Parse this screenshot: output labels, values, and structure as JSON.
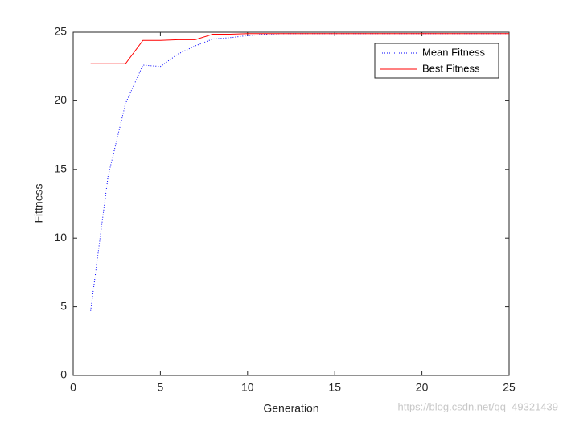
{
  "chart_data": {
    "type": "line",
    "xlabel": "Generation",
    "ylabel": "Fittness",
    "x": [
      1,
      2,
      3,
      4,
      5,
      6,
      7,
      8,
      9,
      10,
      11,
      12,
      13,
      14,
      15,
      16,
      17,
      18,
      19,
      20,
      21,
      22,
      23,
      24,
      25
    ],
    "series": [
      {
        "name": "Mean Fitness",
        "color": "#0000ff",
        "style": "dotted",
        "values": [
          4.7,
          14.5,
          19.8,
          22.6,
          22.5,
          23.4,
          24.0,
          24.5,
          24.6,
          24.75,
          24.85,
          24.9,
          24.9,
          24.9,
          24.9,
          24.9,
          24.9,
          24.9,
          24.9,
          24.9,
          24.9,
          24.9,
          24.9,
          24.9,
          24.9
        ]
      },
      {
        "name": "Best Fitness",
        "color": "#ff0000",
        "style": "solid",
        "values": [
          22.7,
          22.7,
          22.7,
          24.4,
          24.4,
          24.45,
          24.45,
          24.85,
          24.85,
          24.9,
          24.9,
          24.9,
          24.9,
          24.9,
          24.9,
          24.9,
          24.9,
          24.9,
          24.9,
          24.9,
          24.9,
          24.9,
          24.9,
          24.9,
          24.9
        ]
      }
    ],
    "xlim": [
      0,
      25
    ],
    "xticks": [
      0,
      5,
      10,
      15,
      20,
      25
    ],
    "ylim": [
      0,
      25
    ],
    "yticks": [
      0,
      5,
      10,
      15,
      20,
      25
    ],
    "legend": "top-right",
    "watermark": "https://blog.csdn.net/qq_49321439"
  }
}
